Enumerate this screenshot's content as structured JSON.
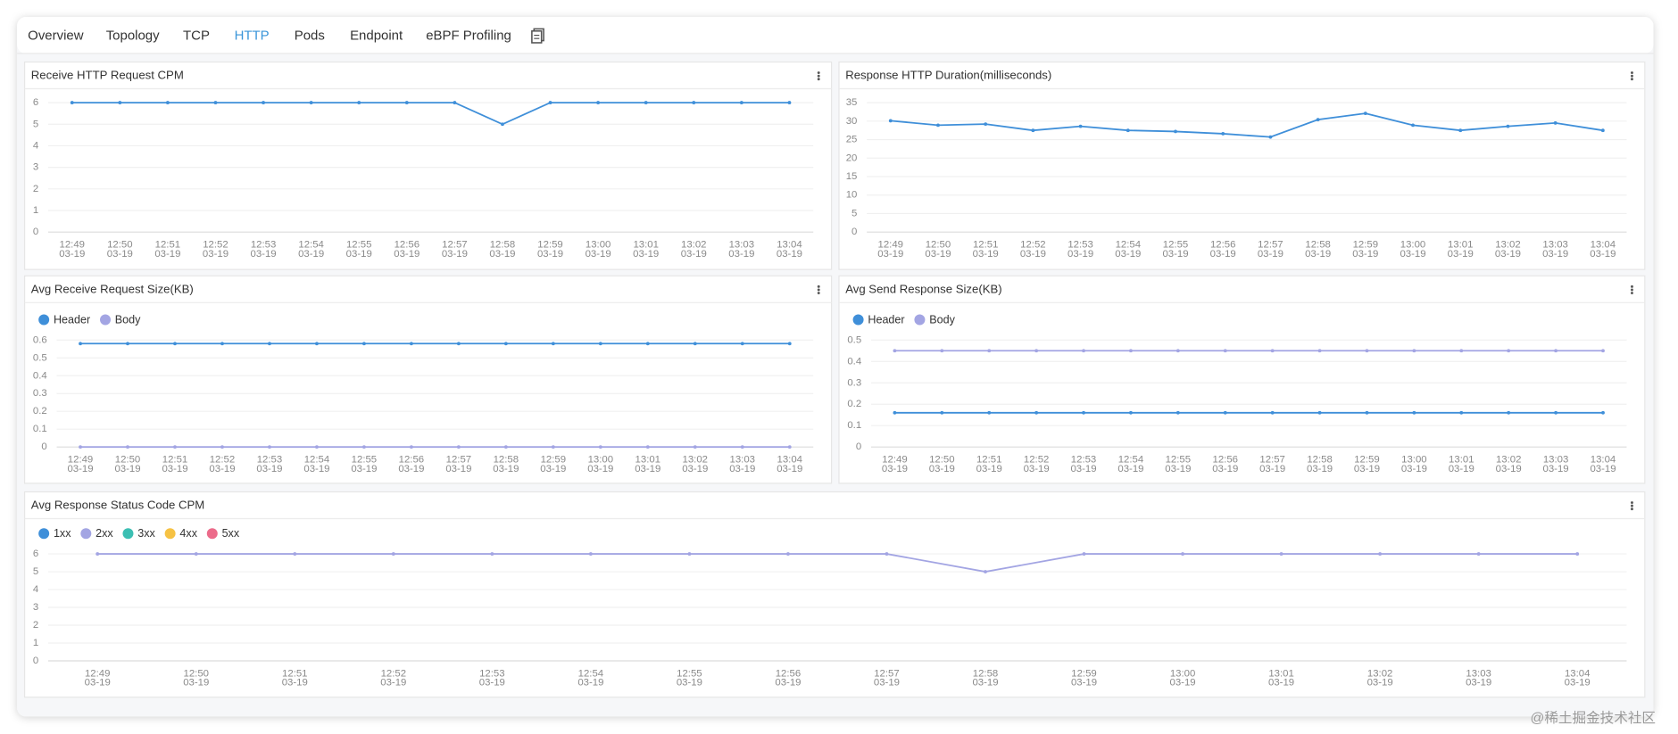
{
  "tabs": [
    "Overview",
    "Topology",
    "TCP",
    "HTTP",
    "Pods",
    "Endpoint",
    "eBPF Profiling"
  ],
  "active_tab": 3,
  "watermark": "@稀土掘金技术社区",
  "chart_data": [
    {
      "type": "line",
      "title": "Receive HTTP Request CPM",
      "categories": [
        [
          "12:49",
          "03-19"
        ],
        [
          "12:50",
          "03-19"
        ],
        [
          "12:51",
          "03-19"
        ],
        [
          "12:52",
          "03-19"
        ],
        [
          "12:53",
          "03-19"
        ],
        [
          "12:54",
          "03-19"
        ],
        [
          "12:55",
          "03-19"
        ],
        [
          "12:56",
          "03-19"
        ],
        [
          "12:57",
          "03-19"
        ],
        [
          "12:58",
          "03-19"
        ],
        [
          "12:59",
          "03-19"
        ],
        [
          "13:00",
          "03-19"
        ],
        [
          "13:01",
          "03-19"
        ],
        [
          "13:02",
          "03-19"
        ],
        [
          "13:03",
          "03-19"
        ],
        [
          "13:04",
          "03-19"
        ]
      ],
      "series": [
        {
          "color": "#3f8fd9",
          "values": [
            6,
            6,
            6,
            6,
            6,
            6,
            6,
            6,
            6,
            5,
            6,
            6,
            6,
            6,
            6,
            6
          ]
        }
      ],
      "ylim": [
        0,
        6
      ],
      "yticks": [
        0,
        1,
        2,
        3,
        4,
        5,
        6
      ],
      "grid": true
    },
    {
      "type": "line",
      "title": "Response HTTP Duration(milliseconds)",
      "categories": [
        [
          "12:49",
          "03-19"
        ],
        [
          "12:50",
          "03-19"
        ],
        [
          "12:51",
          "03-19"
        ],
        [
          "12:52",
          "03-19"
        ],
        [
          "12:53",
          "03-19"
        ],
        [
          "12:54",
          "03-19"
        ],
        [
          "12:55",
          "03-19"
        ],
        [
          "12:56",
          "03-19"
        ],
        [
          "12:57",
          "03-19"
        ],
        [
          "12:58",
          "03-19"
        ],
        [
          "12:59",
          "03-19"
        ],
        [
          "13:00",
          "03-19"
        ],
        [
          "13:01",
          "03-19"
        ],
        [
          "13:02",
          "03-19"
        ],
        [
          "13:03",
          "03-19"
        ],
        [
          "13:04",
          "03-19"
        ]
      ],
      "series": [
        {
          "color": "#3f8fd9",
          "values": [
            30.1,
            28.9,
            29.2,
            27.5,
            28.6,
            27.5,
            27.2,
            26.6,
            25.7,
            30.4,
            32.1,
            28.9,
            27.5,
            28.6,
            29.5,
            27.5
          ]
        }
      ],
      "ylim": [
        0,
        35
      ],
      "yticks": [
        0,
        5,
        10,
        15,
        20,
        25,
        30,
        35
      ],
      "grid": true
    },
    {
      "type": "line",
      "title": "Avg Receive Request Size(KB)",
      "categories": [
        [
          "12:49",
          "03-19"
        ],
        [
          "12:50",
          "03-19"
        ],
        [
          "12:51",
          "03-19"
        ],
        [
          "12:52",
          "03-19"
        ],
        [
          "12:53",
          "03-19"
        ],
        [
          "12:54",
          "03-19"
        ],
        [
          "12:55",
          "03-19"
        ],
        [
          "12:56",
          "03-19"
        ],
        [
          "12:57",
          "03-19"
        ],
        [
          "12:58",
          "03-19"
        ],
        [
          "12:59",
          "03-19"
        ],
        [
          "13:00",
          "03-19"
        ],
        [
          "13:01",
          "03-19"
        ],
        [
          "13:02",
          "03-19"
        ],
        [
          "13:03",
          "03-19"
        ],
        [
          "13:04",
          "03-19"
        ]
      ],
      "series": [
        {
          "name": "Header",
          "color": "#3f8fd9",
          "values": [
            0.58,
            0.58,
            0.58,
            0.58,
            0.58,
            0.58,
            0.58,
            0.58,
            0.58,
            0.58,
            0.58,
            0.58,
            0.58,
            0.58,
            0.58,
            0.58
          ]
        },
        {
          "name": "Body",
          "color": "#a3a5e3",
          "values": [
            0,
            0,
            0,
            0,
            0,
            0,
            0,
            0,
            0,
            0,
            0,
            0,
            0,
            0,
            0,
            0
          ]
        }
      ],
      "ylim": [
        0,
        0.6
      ],
      "yticks": [
        0,
        0.1,
        0.2,
        0.3,
        0.4,
        0.5,
        0.6
      ],
      "grid": true
    },
    {
      "type": "line",
      "title": "Avg Send Response Size(KB)",
      "categories": [
        [
          "12:49",
          "03-19"
        ],
        [
          "12:50",
          "03-19"
        ],
        [
          "12:51",
          "03-19"
        ],
        [
          "12:52",
          "03-19"
        ],
        [
          "12:53",
          "03-19"
        ],
        [
          "12:54",
          "03-19"
        ],
        [
          "12:55",
          "03-19"
        ],
        [
          "12:56",
          "03-19"
        ],
        [
          "12:57",
          "03-19"
        ],
        [
          "12:58",
          "03-19"
        ],
        [
          "12:59",
          "03-19"
        ],
        [
          "13:00",
          "03-19"
        ],
        [
          "13:01",
          "03-19"
        ],
        [
          "13:02",
          "03-19"
        ],
        [
          "13:03",
          "03-19"
        ],
        [
          "13:04",
          "03-19"
        ]
      ],
      "series": [
        {
          "name": "Header",
          "color": "#3f8fd9",
          "values": [
            0.16,
            0.16,
            0.16,
            0.16,
            0.16,
            0.16,
            0.16,
            0.16,
            0.16,
            0.16,
            0.16,
            0.16,
            0.16,
            0.16,
            0.16,
            0.16
          ]
        },
        {
          "name": "Body",
          "color": "#a3a5e3",
          "values": [
            0.45,
            0.45,
            0.45,
            0.45,
            0.45,
            0.45,
            0.45,
            0.45,
            0.45,
            0.45,
            0.45,
            0.45,
            0.45,
            0.45,
            0.45,
            0.45
          ]
        }
      ],
      "ylim": [
        0,
        0.5
      ],
      "yticks": [
        0,
        0.1,
        0.2,
        0.3,
        0.4,
        0.5
      ],
      "grid": true
    },
    {
      "type": "line",
      "title": "Avg Response Status Code CPM",
      "categories": [
        [
          "12:49",
          "03-19"
        ],
        [
          "12:50",
          "03-19"
        ],
        [
          "12:51",
          "03-19"
        ],
        [
          "12:52",
          "03-19"
        ],
        [
          "12:53",
          "03-19"
        ],
        [
          "12:54",
          "03-19"
        ],
        [
          "12:55",
          "03-19"
        ],
        [
          "12:56",
          "03-19"
        ],
        [
          "12:57",
          "03-19"
        ],
        [
          "12:58",
          "03-19"
        ],
        [
          "12:59",
          "03-19"
        ],
        [
          "13:00",
          "03-19"
        ],
        [
          "13:01",
          "03-19"
        ],
        [
          "13:02",
          "03-19"
        ],
        [
          "13:03",
          "03-19"
        ],
        [
          "13:04",
          "03-19"
        ]
      ],
      "series": [
        {
          "name": "1xx",
          "color": "#3f8fd9",
          "values": [
            null,
            null,
            null,
            null,
            null,
            null,
            null,
            null,
            null,
            null,
            null,
            null,
            null,
            null,
            null,
            null
          ]
        },
        {
          "name": "2xx",
          "color": "#a3a5e3",
          "values": [
            6,
            6,
            6,
            6,
            6,
            6,
            6,
            6,
            6,
            5,
            6,
            6,
            6,
            6,
            6,
            6
          ]
        },
        {
          "name": "3xx",
          "color": "#3cbfb3",
          "values": [
            null,
            null,
            null,
            null,
            null,
            null,
            null,
            null,
            null,
            null,
            null,
            null,
            null,
            null,
            null,
            null
          ]
        },
        {
          "name": "4xx",
          "color": "#f6c244",
          "values": [
            null,
            null,
            null,
            null,
            null,
            null,
            null,
            null,
            null,
            null,
            null,
            null,
            null,
            null,
            null,
            null
          ]
        },
        {
          "name": "5xx",
          "color": "#ec6b8a",
          "values": [
            null,
            null,
            null,
            null,
            null,
            null,
            null,
            null,
            null,
            null,
            null,
            null,
            null,
            null,
            null,
            null
          ]
        }
      ],
      "ylim": [
        0,
        6
      ],
      "yticks": [
        0,
        1,
        2,
        3,
        4,
        5,
        6
      ],
      "grid": true
    }
  ]
}
